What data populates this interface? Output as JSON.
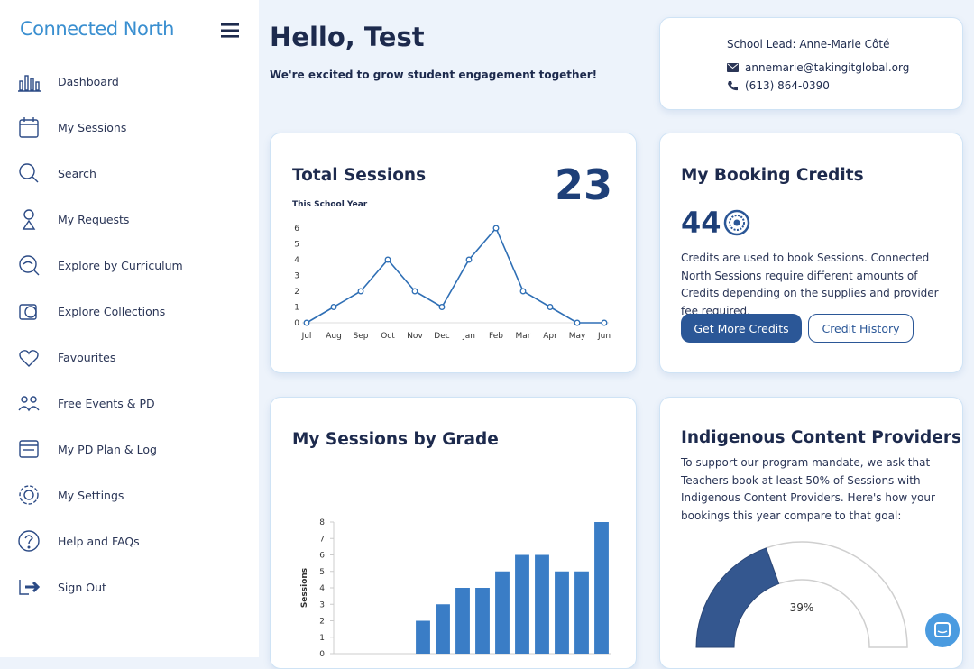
{
  "sidebar": {
    "logo": "Connected North",
    "items": [
      "Dashboard",
      "My Sessions",
      "Search",
      "My Requests",
      "Explore by Curriculum",
      "Explore Collections",
      "Favourites",
      "Free Events & PD",
      "My PD Plan & Log",
      "My Settings",
      "Help and FAQs",
      "Sign Out"
    ]
  },
  "header": {
    "title": "Hello, Test",
    "subtitle": "We're excited to grow student engagement together!"
  },
  "contact": {
    "lead": "School Lead: Anne-Marie Côté",
    "email": "annemarie@takingitglobal.org",
    "phone": "(613) 864-0390"
  },
  "credits": {
    "title": "My Booking Credits",
    "amount": 44,
    "text": "Credits are used to book Sessions. Connected North Sessions require different amounts of Credits depending on the supplies and provider fee required.",
    "buttons": [
      "Get More Credits",
      "Credit History"
    ]
  },
  "indigenous": {
    "title": "Indigenous Content Providers",
    "text": "To support our program mandate, we ask that Teachers book at least 50% of Sessions with Indigenous Content Providers. Here's how your bookings this year compare to that goal:"
  },
  "chart_data": [
    {
      "type": "line",
      "title": "Total Sessions",
      "total": 23,
      "subtitle": "This School Year",
      "categories": [
        "Jul",
        "Aug",
        "Sep",
        "Oct",
        "Nov",
        "Dec",
        "Jan",
        "Feb",
        "Mar",
        "Apr",
        "May",
        "Jun"
      ],
      "values": [
        0,
        1,
        2,
        4,
        2,
        1,
        4,
        6,
        2,
        1,
        0,
        0
      ],
      "color": "#2f6fb5",
      "ylim": [
        0,
        6
      ],
      "yticks": [
        0,
        1,
        2,
        3,
        4,
        5,
        6
      ]
    },
    {
      "type": "bar",
      "title": "My Sessions by Grade",
      "y_label": "Sessions",
      "categories": [
        null,
        null,
        null,
        null,
        null,
        null,
        null,
        null,
        null,
        null,
        null,
        null,
        null,
        null
      ],
      "values": [
        0,
        0,
        0,
        0,
        2,
        3,
        4,
        4,
        5,
        6,
        6,
        5,
        5,
        8
      ],
      "color": "#3a7dc6",
      "ylim": [
        0,
        8
      ],
      "yticks": [
        0,
        1,
        2,
        3,
        4,
        5,
        6,
        7,
        8
      ]
    },
    {
      "type": "gauge",
      "values": [
        39
      ],
      "value_labels": [
        "39%"
      ],
      "ylim": [
        0,
        100
      ],
      "color": "#34578f"
    }
  ]
}
